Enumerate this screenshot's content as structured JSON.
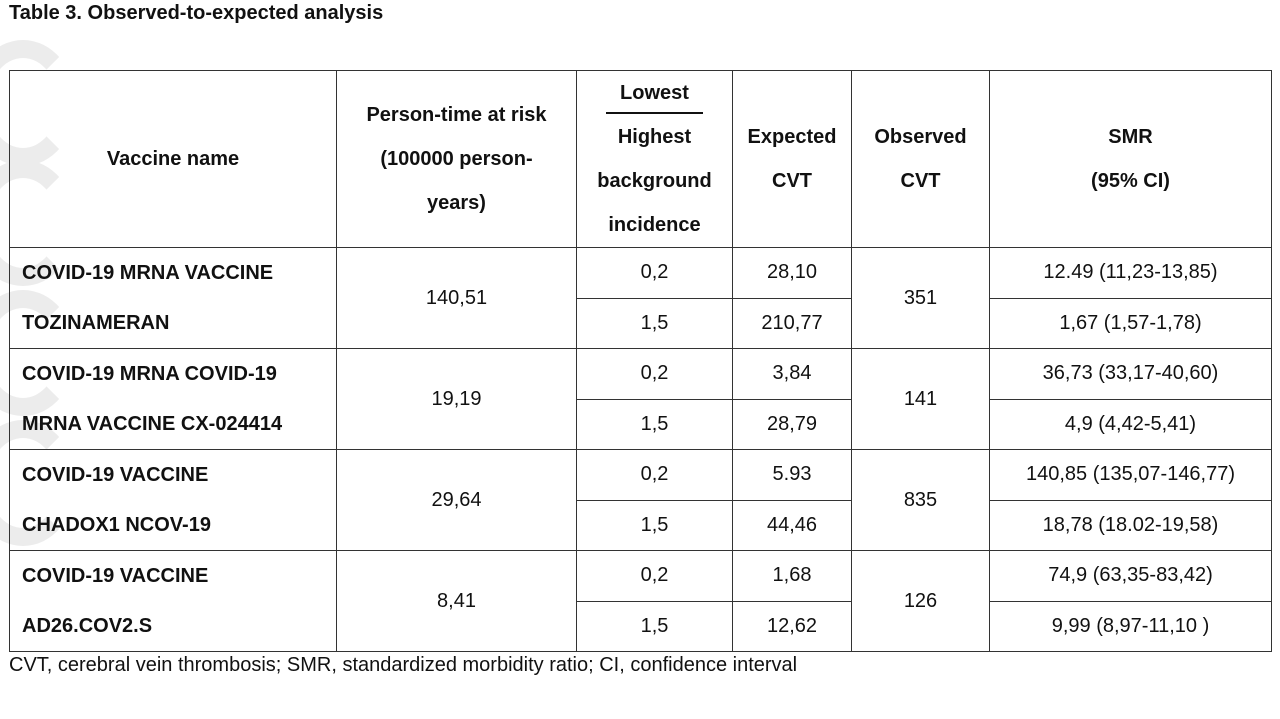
{
  "title": "Table 3. Observed-to-expected analysis",
  "headers": {
    "vaccine": "Vaccine name",
    "person_time": [
      "Person-time at risk",
      "(100000 person-",
      "years)"
    ],
    "incidence_top": "Lowest",
    "incidence_bottom": [
      "Highest",
      "background",
      "incidence"
    ],
    "expected": [
      "Expected",
      "CVT"
    ],
    "observed": [
      "Observed",
      "CVT"
    ],
    "smr": [
      "SMR",
      "(95% CI)"
    ]
  },
  "rows": [
    {
      "name": [
        "COVID-19 MRNA VACCINE",
        "TOZINAMERAN"
      ],
      "person_time": "140,51",
      "observed": "351",
      "sub": [
        {
          "incidence": "0,2",
          "expected": "28,10",
          "smr": "12.49 (11,23-13,85)"
        },
        {
          "incidence": "1,5",
          "expected": "210,77",
          "smr": "1,67 (1,57-1,78)"
        }
      ]
    },
    {
      "name": [
        "COVID-19 MRNA COVID-19",
        "MRNA VACCINE CX-024414"
      ],
      "person_time": "19,19",
      "observed": "141",
      "sub": [
        {
          "incidence": "0,2",
          "expected": "3,84",
          "smr": "36,73 (33,17-40,60)"
        },
        {
          "incidence": "1,5",
          "expected": "28,79",
          "smr": "4,9 (4,42-5,41)"
        }
      ]
    },
    {
      "name": [
        "COVID-19 VACCINE",
        "CHADOX1 NCOV-19"
      ],
      "person_time": "29,64",
      "observed": "835",
      "sub": [
        {
          "incidence": "0,2",
          "expected": "5.93",
          "smr": "140,85 (135,07-146,77)"
        },
        {
          "incidence": "1,5",
          "expected": "44,46",
          "smr": "18,78 (18.02-19,58)"
        }
      ]
    },
    {
      "name": [
        "COVID-19 VACCINE",
        "AD26.COV2.S"
      ],
      "person_time": "8,41",
      "observed": "126",
      "sub": [
        {
          "incidence": "0,2",
          "expected": "1,68",
          "smr": "74,9 (63,35-83,42)"
        },
        {
          "incidence": "1,5",
          "expected": "12,62",
          "smr": "9,99 (8,97-11,10 )"
        }
      ]
    }
  ],
  "footnote": "CVT, cerebral vein thrombosis; SMR, standardized morbidity ratio; CI, confidence interval"
}
